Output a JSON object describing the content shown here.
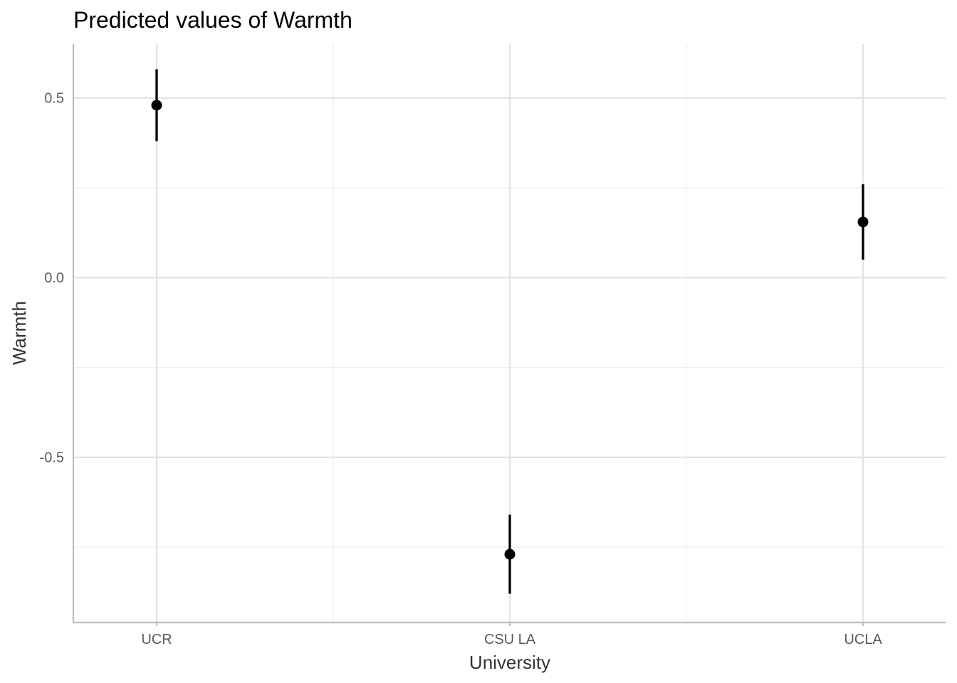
{
  "chart_data": {
    "type": "scatter",
    "title": "Predicted values of Warmth",
    "xlabel": "University",
    "ylabel": "Warmth",
    "categories": [
      "UCR",
      "CSU LA",
      "UCLA"
    ],
    "series": [
      {
        "name": "Warmth",
        "values": [
          0.48,
          -0.77,
          0.155
        ],
        "ci_low": [
          0.38,
          -0.88,
          0.05
        ],
        "ci_high": [
          0.58,
          -0.66,
          0.26
        ]
      }
    ],
    "ylim": [
      -0.96,
      0.65
    ],
    "y_major_ticks": [
      -0.5,
      0.0,
      0.5
    ],
    "y_tick_labels": [
      "-0.5",
      "0.0",
      "0.5"
    ],
    "y_minor_ticks": [
      -0.75,
      -0.25,
      0.25
    ],
    "grid": true,
    "legend": "none"
  }
}
